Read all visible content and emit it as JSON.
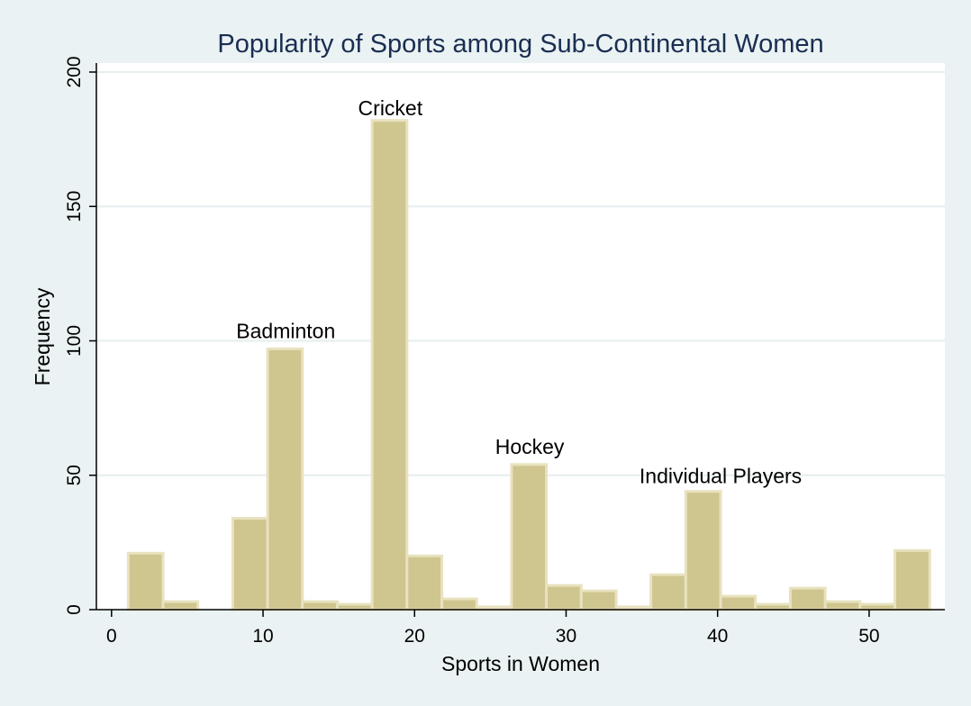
{
  "chart_data": {
    "type": "bar",
    "title": "Popularity of Sports among Sub-Continental Women",
    "xlabel": "Sports in Women",
    "ylabel": "Frequency",
    "xlim": [
      -1,
      55
    ],
    "ylim": [
      0,
      200
    ],
    "xticks": [
      0,
      10,
      20,
      30,
      40,
      50
    ],
    "yticks": [
      0,
      50,
      100,
      150,
      200
    ],
    "grid": true,
    "bin_width": 2.3,
    "bins": [
      {
        "start": 1.1,
        "value": 21
      },
      {
        "start": 3.4,
        "value": 3
      },
      {
        "start": 8.0,
        "value": 34
      },
      {
        "start": 10.3,
        "value": 97
      },
      {
        "start": 12.6,
        "value": 3
      },
      {
        "start": 14.9,
        "value": 2
      },
      {
        "start": 17.2,
        "value": 182
      },
      {
        "start": 19.5,
        "value": 20
      },
      {
        "start": 21.8,
        "value": 4
      },
      {
        "start": 24.1,
        "value": 1
      },
      {
        "start": 26.4,
        "value": 54
      },
      {
        "start": 28.7,
        "value": 9
      },
      {
        "start": 31.0,
        "value": 7
      },
      {
        "start": 33.3,
        "value": 1
      },
      {
        "start": 35.6,
        "value": 13
      },
      {
        "start": 37.9,
        "value": 44
      },
      {
        "start": 40.2,
        "value": 5
      },
      {
        "start": 42.5,
        "value": 2
      },
      {
        "start": 44.8,
        "value": 8
      },
      {
        "start": 47.1,
        "value": 3
      },
      {
        "start": 49.4,
        "value": 2
      },
      {
        "start": 51.7,
        "value": 22
      }
    ],
    "annotations": [
      {
        "text": "Badminton",
        "x": 11.5,
        "y": 101
      },
      {
        "text": "Cricket",
        "x": 18.4,
        "y": 184
      },
      {
        "text": "Hockey",
        "x": 27.6,
        "y": 58
      },
      {
        "text": "Individual Players",
        "x": 40.2,
        "y": 47
      }
    ],
    "colors": {
      "background": "#eaf2f3",
      "plot_background": "#ffffff",
      "bar_fill": "#cfc58f",
      "bar_stroke": "#e8e2bf",
      "grid": "#e6eeef",
      "title": "#1a2e52"
    }
  }
}
